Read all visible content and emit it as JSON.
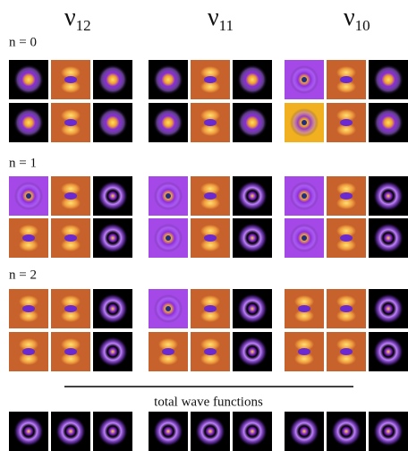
{
  "columns": [
    {
      "symbol": "ν",
      "subscript": "12"
    },
    {
      "symbol": "ν",
      "subscript": "11"
    },
    {
      "symbol": "ν",
      "subscript": "10"
    }
  ],
  "rows": [
    {
      "label": "n = 0"
    },
    {
      "label": "n = 1"
    },
    {
      "label": "n = 2"
    }
  ],
  "total_label": "total wave functions"
}
